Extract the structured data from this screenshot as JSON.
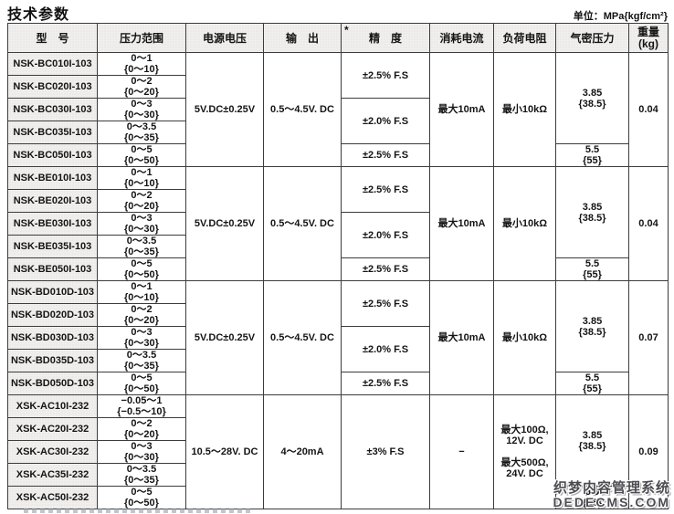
{
  "page": {
    "title": "技术参数",
    "unit_note": "单位：MPa{kgf/cm²}"
  },
  "table": {
    "headers": {
      "model": "型　号",
      "pressure_range": "压力范围",
      "supply_voltage": "电源电压",
      "output": "输　出",
      "accuracy_asterisk": "*",
      "accuracy": "精　度",
      "current_consumption": "消耗电流",
      "load_resistance": "负荷电阻",
      "airtight_pressure": "气密压力",
      "weight_line1": "重量",
      "weight_line2": "(kg)"
    },
    "blocks": [
      {
        "rows": [
          {
            "model": "NSK-BC010I-103",
            "range_mpa": "0～1",
            "range_kgf": "{0～10}"
          },
          {
            "model": "NSK-BC020I-103",
            "range_mpa": "0～2",
            "range_kgf": "{0～20}"
          },
          {
            "model": "NSK-BC030I-103",
            "range_mpa": "0～3",
            "range_kgf": "{0～30}"
          },
          {
            "model": "NSK-BC035I-103",
            "range_mpa": "0～3.5",
            "range_kgf": "{0～35}"
          },
          {
            "model": "NSK-BC050I-103",
            "range_mpa": "0～5",
            "range_kgf": "{0～50}"
          }
        ],
        "supply_voltage": "5V.DC±0.25V",
        "output": "0.5～4.5V. DC",
        "accuracy": [
          {
            "label": "±2.5% F.S",
            "rows": 2
          },
          {
            "label": "±2.0% F.S",
            "rows": 2
          },
          {
            "label": "±2.5% F.S",
            "rows": 1
          }
        ],
        "current": "最大10mA",
        "load": [
          [
            "最小10kΩ"
          ]
        ],
        "airtight": [
          {
            "mpa": "3.85",
            "kgf": "{38.5}",
            "rows": 4
          },
          {
            "mpa": "5.5",
            "kgf": "{55}",
            "rows": 1
          }
        ],
        "weight": "0.04"
      },
      {
        "rows": [
          {
            "model": "NSK-BE010I-103",
            "range_mpa": "0～1",
            "range_kgf": "{0～10}"
          },
          {
            "model": "NSK-BE020I-103",
            "range_mpa": "0～2",
            "range_kgf": "{0～20}"
          },
          {
            "model": "NSK-BE030I-103",
            "range_mpa": "0～3",
            "range_kgf": "{0～30}"
          },
          {
            "model": "NSK-BE035I-103",
            "range_mpa": "0～3.5",
            "range_kgf": "{0～35}"
          },
          {
            "model": "NSK-BE050I-103",
            "range_mpa": "0～5",
            "range_kgf": "{0～50}"
          }
        ],
        "supply_voltage": "5V.DC±0.25V",
        "output": "0.5～4.5V. DC",
        "accuracy": [
          {
            "label": "±2.5% F.S",
            "rows": 2
          },
          {
            "label": "±2.0% F.S",
            "rows": 2
          },
          {
            "label": "±2.5% F.S",
            "rows": 1
          }
        ],
        "current": "最大10mA",
        "load": [
          [
            "最小10kΩ"
          ]
        ],
        "airtight": [
          {
            "mpa": "3.85",
            "kgf": "{38.5}",
            "rows": 4
          },
          {
            "mpa": "5.5",
            "kgf": "{55}",
            "rows": 1
          }
        ],
        "weight": "0.04"
      },
      {
        "rows": [
          {
            "model": "NSK-BD010D-103",
            "range_mpa": "0～1",
            "range_kgf": "{0～10}"
          },
          {
            "model": "NSK-BD020D-103",
            "range_mpa": "0～2",
            "range_kgf": "{0～20}"
          },
          {
            "model": "NSK-BD030D-103",
            "range_mpa": "0～3",
            "range_kgf": "{0～30}"
          },
          {
            "model": "NSK-BD035D-103",
            "range_mpa": "0～3.5",
            "range_kgf": "{0～35}"
          },
          {
            "model": "NSK-BD050D-103",
            "range_mpa": "0～5",
            "range_kgf": "{0～50}"
          }
        ],
        "supply_voltage": "5V.DC±0.25V",
        "output": "0.5～4.5V. DC",
        "accuracy": [
          {
            "label": "±2.5% F.S",
            "rows": 2
          },
          {
            "label": "±2.0% F.S",
            "rows": 2
          },
          {
            "label": "±2.5% F.S",
            "rows": 1
          }
        ],
        "current": "最大10mA",
        "load": [
          [
            "最小10kΩ"
          ]
        ],
        "airtight": [
          {
            "mpa": "3.85",
            "kgf": "{38.5}",
            "rows": 4
          },
          {
            "mpa": "5.5",
            "kgf": "{55}",
            "rows": 1
          }
        ],
        "weight": "0.07"
      },
      {
        "rows": [
          {
            "model": "XSK-AC10I-232",
            "range_mpa": "−0.05～1",
            "range_kgf": "{−0.5～10}"
          },
          {
            "model": "XSK-AC20I-232",
            "range_mpa": "0～2",
            "range_kgf": "{0～20}"
          },
          {
            "model": "XSK-AC30I-232",
            "range_mpa": "0～3",
            "range_kgf": "{0～30}"
          },
          {
            "model": "XSK-AC35I-232",
            "range_mpa": "0～3.5",
            "range_kgf": "{0～35}"
          },
          {
            "model": "XSK-AC50I-232",
            "range_mpa": "0～5",
            "range_kgf": "{0～50}"
          }
        ],
        "supply_voltage": "10.5～28V. DC",
        "output": "4～20mA",
        "accuracy": [
          {
            "label": "±3% F.S",
            "rows": 5
          }
        ],
        "current": "−",
        "load": [
          [
            "最大100Ω,",
            "12V. DC"
          ],
          [
            "最大500Ω,",
            "24V. DC"
          ]
        ],
        "airtight": [
          {
            "mpa": "3.85",
            "kgf": "{38.5}",
            "rows": 4
          },
          {
            "mpa": "5.5",
            "kgf": "{55}",
            "rows": 1
          }
        ],
        "weight": "0.09"
      }
    ]
  },
  "watermark": {
    "line1": "织梦内容管理系统",
    "line2": "DEDECMS.COM"
  }
}
